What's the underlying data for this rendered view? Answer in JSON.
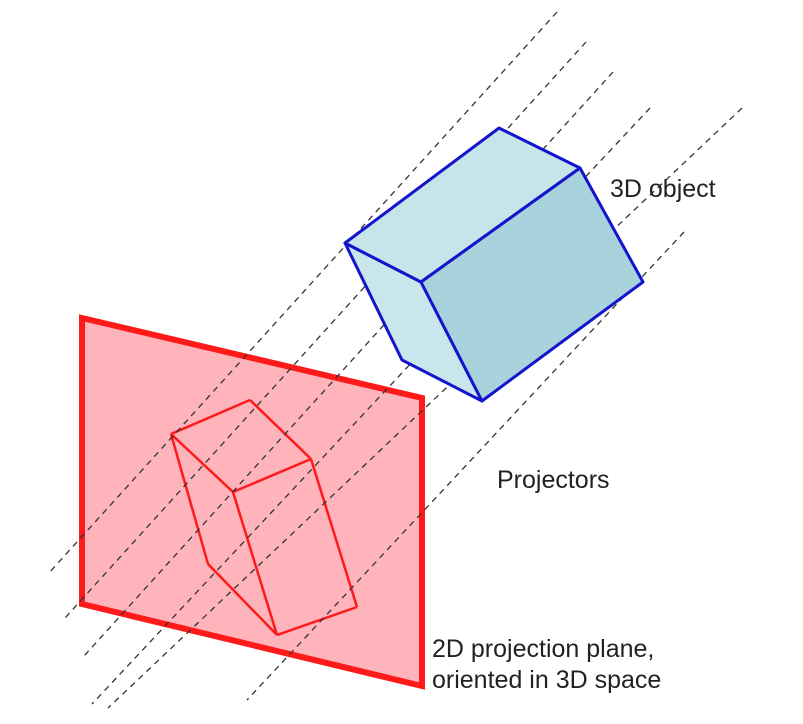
{
  "labels": {
    "object": "3D object",
    "projectors": "Projectors",
    "plane_line1": "2D projection plane,",
    "plane_line2": "oriented in 3D space"
  },
  "colors": {
    "object_stroke": "#1414cc",
    "object_fill_left": "#c8e6ec",
    "object_fill_top": "#c6e4ea",
    "object_fill_right": "#a8d2dc",
    "plane_stroke": "#ff1a1a",
    "plane_fill": "#ffb3ba",
    "projector": "#333333",
    "text": "#222222"
  }
}
